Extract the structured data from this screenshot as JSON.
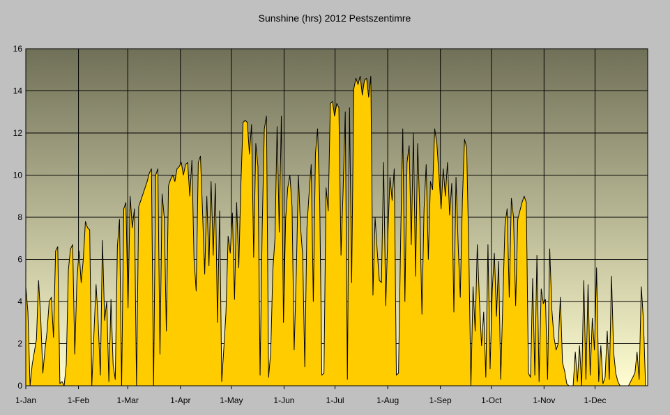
{
  "chart_data": {
    "type": "area",
    "title": "Sunshine (hrs) 2012 Pestszentimre",
    "xlabel": "",
    "ylabel": "",
    "ylim": [
      0,
      16
    ],
    "yticks": [
      0,
      2,
      4,
      6,
      8,
      10,
      12,
      14,
      16
    ],
    "y_tick_labels": [
      "0",
      "2",
      "4",
      "6",
      "8",
      "10",
      "12",
      "14",
      "16"
    ],
    "x_tick_labels": [
      "1-Jan",
      "1-Feb",
      "1-Mar",
      "1-Apr",
      "1-May",
      "1-Jun",
      "1-Jul",
      "1-Aug",
      "1-Sep",
      "1-Oct",
      "1-Nov",
      "1-Dec"
    ],
    "x_tick_days": [
      1,
      32,
      61,
      92,
      122,
      153,
      183,
      214,
      245,
      275,
      306,
      336
    ],
    "days_in_year": 366,
    "grid": true,
    "colors": {
      "fill": "#ffcc00",
      "stroke": "#000000",
      "plot_top": "#707058",
      "plot_bottom": "#fffdd0",
      "page_bg": "#c0c0c0",
      "grid": "#000000"
    },
    "series": [
      {
        "values": [
          4.7,
          3.5,
          0,
          1.0,
          1.6,
          2.2,
          5.0,
          3.2,
          0.6,
          1.7,
          2.6,
          4.0,
          4.2,
          2.3,
          6.4,
          6.6,
          0.1,
          0.2,
          0,
          1.0,
          5.5,
          6.5,
          6.7,
          1.5,
          5.0,
          6.4,
          4.9,
          6.0,
          7.8,
          7.5,
          7.4,
          0,
          2.5,
          4.8,
          3.0,
          0.5,
          6.9,
          3.1,
          4.0,
          0.2,
          4.1,
          1.0,
          0.3,
          6.6,
          7.9,
          0,
          8.4,
          8.7,
          3.7,
          9.0,
          7.5,
          8.4,
          0,
          8.5,
          8.8,
          9.1,
          9.4,
          9.7,
          10.1,
          10.3,
          0,
          10.0,
          10.3,
          1.5,
          9.1,
          8.0,
          2.6,
          9.5,
          9.8,
          10.0,
          9.7,
          10.3,
          10.4,
          10.6,
          10.0,
          10.5,
          10.6,
          9.0,
          10.7,
          6.0,
          4.5,
          10.6,
          10.9,
          8.2,
          5.3,
          9.0,
          5.7,
          9.7,
          6.2,
          9.6,
          3.0,
          8.3,
          0.2,
          1.8,
          3.5,
          7.1,
          6.3,
          8.2,
          4.1,
          8.7,
          5.6,
          9.6,
          12.5,
          12.6,
          12.5,
          11.0,
          12.4,
          6.1,
          11.5,
          10.4,
          0.5,
          7.5,
          12.2,
          12.8,
          0.4,
          1.6,
          5.5,
          7.0,
          12.3,
          7.3,
          12.8,
          3.0,
          7.9,
          9.4,
          10.0,
          8.5,
          1.7,
          5.3,
          10.0,
          7.5,
          6.2,
          0.9,
          7.5,
          9.1,
          10.5,
          4.0,
          11.0,
          12.2,
          8.8,
          0.5,
          0.6,
          9.4,
          8.3,
          13.4,
          13.5,
          12.8,
          13.4,
          13.2,
          6.2,
          9.3,
          13.0,
          0.3,
          13.2,
          4.9,
          14.1,
          14.6,
          14.3,
          14.7,
          13.8,
          14.5,
          14.6,
          13.7,
          14.7,
          4.3,
          8.0,
          6.4,
          5.0,
          4.9,
          10.6,
          3.8,
          7.2,
          9.9,
          8.8,
          10.3,
          0.5,
          0.6,
          6.9,
          12.2,
          4.0,
          10.6,
          11.4,
          6.7,
          12.0,
          5.2,
          11.5,
          8.2,
          3.4,
          8.4,
          10.5,
          6.0,
          9.7,
          9.3,
          12.2,
          11.5,
          10.0,
          8.4,
          10.3,
          9.0,
          10.6,
          8.1,
          9.6,
          3.5,
          9.9,
          6.7,
          4.2,
          8.8,
          11.7,
          11.3,
          6.4,
          0,
          4.7,
          2.6,
          6.7,
          4.0,
          1.9,
          3.5,
          0.4,
          6.7,
          0.8,
          4.5,
          6.3,
          3.3,
          5.9,
          0.3,
          4.1,
          7.6,
          8.4,
          4.2,
          8.9,
          8.0,
          3.8,
          7.9,
          8.3,
          8.7,
          9.0,
          8.7,
          0.6,
          0.4,
          5.1,
          0.5,
          6.2,
          0.2,
          4.6,
          3.9,
          4.1,
          0.3,
          6.5,
          3.6,
          2.3,
          1.7,
          2.0,
          4.2,
          1.1,
          0.7,
          0.1,
          0,
          0,
          0,
          1.6,
          0.2,
          1.9,
          0,
          5.0,
          0.3,
          4.8,
          0.5,
          3.2,
          1.7,
          5.6,
          0.2,
          1.9,
          0.1,
          0.4,
          2.6,
          0.3,
          5.2,
          1.6,
          0.6,
          0.2,
          0,
          0,
          0,
          0,
          0,
          0.2,
          0.4,
          0.6,
          1.6,
          0.3,
          4.7,
          3.1,
          0,
          0
        ]
      }
    ]
  }
}
